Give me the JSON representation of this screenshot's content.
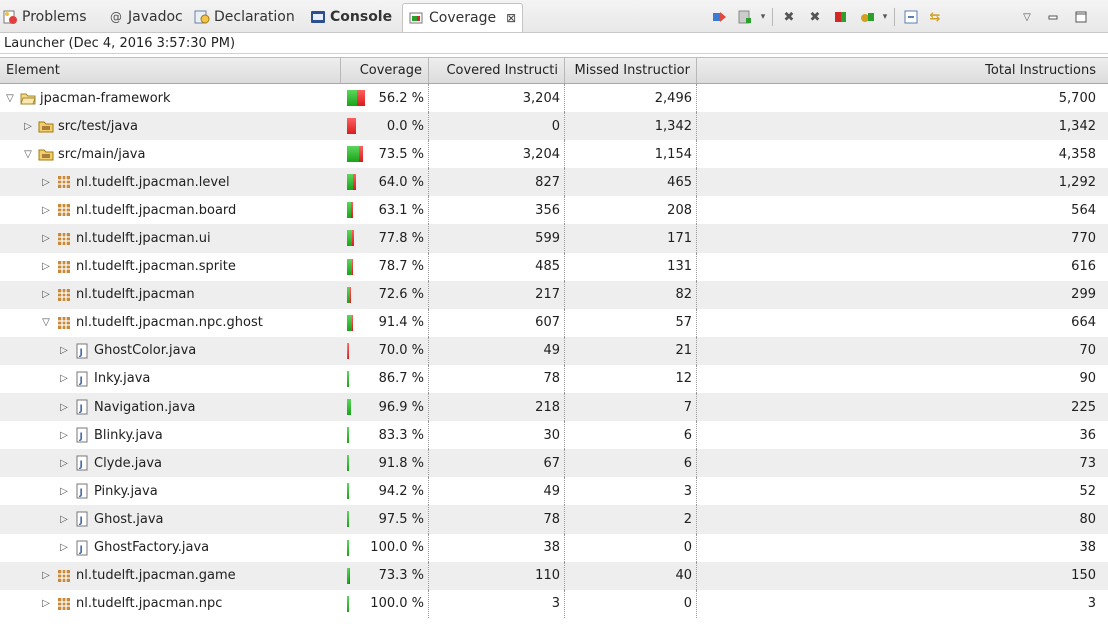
{
  "tabs": [
    {
      "label": "Problems",
      "icon": "problems-icon",
      "active": false,
      "bold": false,
      "x": 2
    },
    {
      "label": "Javadoc",
      "icon": "javadoc-icon",
      "active": false,
      "bold": false,
      "x": 108
    },
    {
      "label": "Declaration",
      "icon": "declaration-icon",
      "active": false,
      "bold": false,
      "x": 194
    },
    {
      "label": "Console",
      "icon": "console-icon",
      "active": false,
      "bold": true,
      "x": 310
    },
    {
      "label": "Coverage",
      "icon": "coverage-icon",
      "active": true,
      "bold": false,
      "x": 402
    }
  ],
  "toolbar": {
    "buttons": [
      "relaunch-icon",
      "dump-icon",
      "dropdown-arrow-icon",
      "remove-session-icon",
      "remove-all-icon",
      "merge-icon",
      "select-session-icon",
      "dropdown-arrow-icon",
      "collapse-all-icon",
      "link-icon",
      "view-menu-icon",
      "minimize-icon",
      "maximize-icon"
    ]
  },
  "session": {
    "label": "Launcher (Dec 4, 2016 3:57:30 PM)"
  },
  "columns": {
    "element": "Element",
    "coverage": "Coverage",
    "covered": "Covered Instructi",
    "missed": "Missed Instructior",
    "total": "Total Instructions"
  },
  "rows": [
    {
      "indent": 0,
      "twisty": "open",
      "icon": "project-icon",
      "name": "jpacman-framework",
      "coverage": "56.2 %",
      "cov": 56.2,
      "covered": "3,204",
      "missed": "2,496",
      "total": "5,700"
    },
    {
      "indent": 1,
      "twisty": "closed",
      "icon": "source-folder-icon",
      "name": "src/test/java",
      "coverage": "0.0 %",
      "cov": 0.0,
      "covered": "0",
      "missed": "1,342",
      "total": "1,342"
    },
    {
      "indent": 1,
      "twisty": "open",
      "icon": "source-folder-icon",
      "name": "src/main/java",
      "coverage": "73.5 %",
      "cov": 73.5,
      "covered": "3,204",
      "missed": "1,154",
      "total": "4,358"
    },
    {
      "indent": 2,
      "twisty": "closed",
      "icon": "package-icon",
      "name": "nl.tudelft.jpacman.level",
      "coverage": "64.0 %",
      "cov": 64.0,
      "covered": "827",
      "missed": "465",
      "total": "1,292"
    },
    {
      "indent": 2,
      "twisty": "closed",
      "icon": "package-icon",
      "name": "nl.tudelft.jpacman.board",
      "coverage": "63.1 %",
      "cov": 63.1,
      "covered": "356",
      "missed": "208",
      "total": "564"
    },
    {
      "indent": 2,
      "twisty": "closed",
      "icon": "package-icon",
      "name": "nl.tudelft.jpacman.ui",
      "coverage": "77.8 %",
      "cov": 77.8,
      "covered": "599",
      "missed": "171",
      "total": "770"
    },
    {
      "indent": 2,
      "twisty": "closed",
      "icon": "package-icon",
      "name": "nl.tudelft.jpacman.sprite",
      "coverage": "78.7 %",
      "cov": 78.7,
      "covered": "485",
      "missed": "131",
      "total": "616"
    },
    {
      "indent": 2,
      "twisty": "closed",
      "icon": "package-icon",
      "name": "nl.tudelft.jpacman",
      "coverage": "72.6 %",
      "cov": 72.6,
      "covered": "217",
      "missed": "82",
      "total": "299"
    },
    {
      "indent": 2,
      "twisty": "open",
      "icon": "package-icon",
      "name": "nl.tudelft.jpacman.npc.ghost",
      "coverage": "91.4 %",
      "cov": 91.4,
      "covered": "607",
      "missed": "57",
      "total": "664"
    },
    {
      "indent": 3,
      "twisty": "closed",
      "icon": "java-file-icon",
      "name": "GhostColor.java",
      "coverage": "70.0 %",
      "cov": 70.0,
      "covered": "49",
      "missed": "21",
      "total": "70"
    },
    {
      "indent": 3,
      "twisty": "closed",
      "icon": "java-file-icon",
      "name": "Inky.java",
      "coverage": "86.7 %",
      "cov": 86.7,
      "covered": "78",
      "missed": "12",
      "total": "90"
    },
    {
      "indent": 3,
      "twisty": "closed",
      "icon": "java-file-icon",
      "name": "Navigation.java",
      "coverage": "96.9 %",
      "cov": 96.9,
      "covered": "218",
      "missed": "7",
      "total": "225"
    },
    {
      "indent": 3,
      "twisty": "closed",
      "icon": "java-file-icon",
      "name": "Blinky.java",
      "coverage": "83.3 %",
      "cov": 83.3,
      "covered": "30",
      "missed": "6",
      "total": "36"
    },
    {
      "indent": 3,
      "twisty": "closed",
      "icon": "java-file-icon",
      "name": "Clyde.java",
      "coverage": "91.8 %",
      "cov": 91.8,
      "covered": "67",
      "missed": "6",
      "total": "73"
    },
    {
      "indent": 3,
      "twisty": "closed",
      "icon": "java-file-icon",
      "name": "Pinky.java",
      "coverage": "94.2 %",
      "cov": 94.2,
      "covered": "49",
      "missed": "3",
      "total": "52"
    },
    {
      "indent": 3,
      "twisty": "closed",
      "icon": "java-file-icon",
      "name": "Ghost.java",
      "coverage": "97.5 %",
      "cov": 97.5,
      "covered": "78",
      "missed": "2",
      "total": "80"
    },
    {
      "indent": 3,
      "twisty": "closed",
      "icon": "java-file-icon",
      "name": "GhostFactory.java",
      "coverage": "100.0 %",
      "cov": 100.0,
      "covered": "38",
      "missed": "0",
      "total": "38"
    },
    {
      "indent": 2,
      "twisty": "closed",
      "icon": "package-icon",
      "name": "nl.tudelft.jpacman.game",
      "coverage": "73.3 %",
      "cov": 73.3,
      "covered": "110",
      "missed": "40",
      "total": "150"
    },
    {
      "indent": 2,
      "twisty": "closed",
      "icon": "package-icon",
      "name": "nl.tudelft.jpacman.npc",
      "coverage": "100.0 %",
      "cov": 100.0,
      "covered": "3",
      "missed": "0",
      "total": "3"
    }
  ],
  "colors": {
    "covered": "#1aa31a",
    "missed": "#d81c1c",
    "alt_row": "#eeeeee"
  }
}
